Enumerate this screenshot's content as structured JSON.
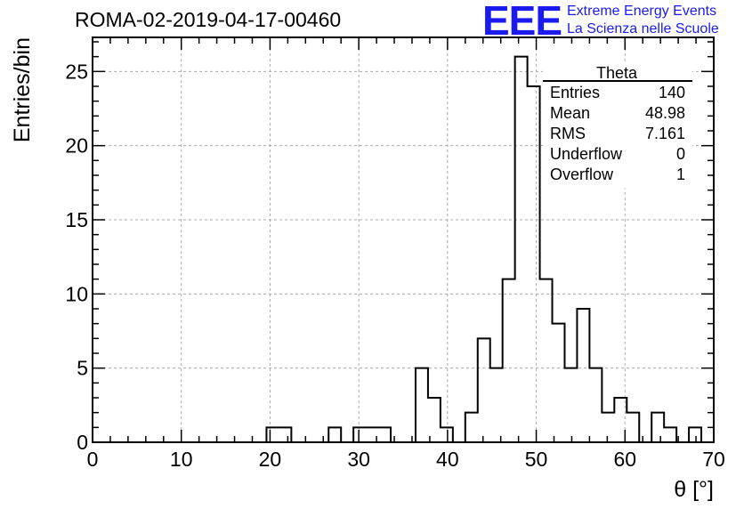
{
  "header": {
    "run_title": "ROMA-02-2019-04-17-00460",
    "logo_text": "EEE",
    "logo_line1": "Extreme Energy Events",
    "logo_line2": "La Scienza nelle Scuole",
    "logo_color": "#1b1bf0"
  },
  "stats_box": {
    "name": "Theta",
    "rows": [
      {
        "label": "Entries",
        "value": "140"
      },
      {
        "label": "Mean",
        "value": "48.98"
      },
      {
        "label": "RMS",
        "value": "7.161"
      },
      {
        "label": "Underflow",
        "value": "0"
      },
      {
        "label": "Overflow",
        "value": "1"
      }
    ]
  },
  "chart_data": {
    "type": "bar",
    "histogram": true,
    "xlabel": "θ [°]",
    "ylabel": "Entries/bin",
    "xlim": [
      0,
      70
    ],
    "ylim": [
      0,
      27.3
    ],
    "bin_width": 1.4,
    "x_ticks": [
      0,
      10,
      20,
      30,
      40,
      50,
      60,
      70
    ],
    "y_ticks": [
      0,
      5,
      10,
      15,
      20,
      25
    ],
    "grid": true,
    "values": [
      0,
      0,
      0,
      0,
      0,
      0,
      0,
      0,
      0,
      0,
      0,
      0,
      0,
      0,
      1,
      1,
      0,
      0,
      0,
      1,
      0,
      1,
      1,
      1,
      0,
      0,
      5,
      3,
      1,
      0,
      2,
      7,
      5,
      11,
      26,
      24,
      11,
      8,
      5,
      9,
      5,
      2,
      3,
      2,
      0,
      2,
      1,
      0,
      1,
      0
    ]
  }
}
